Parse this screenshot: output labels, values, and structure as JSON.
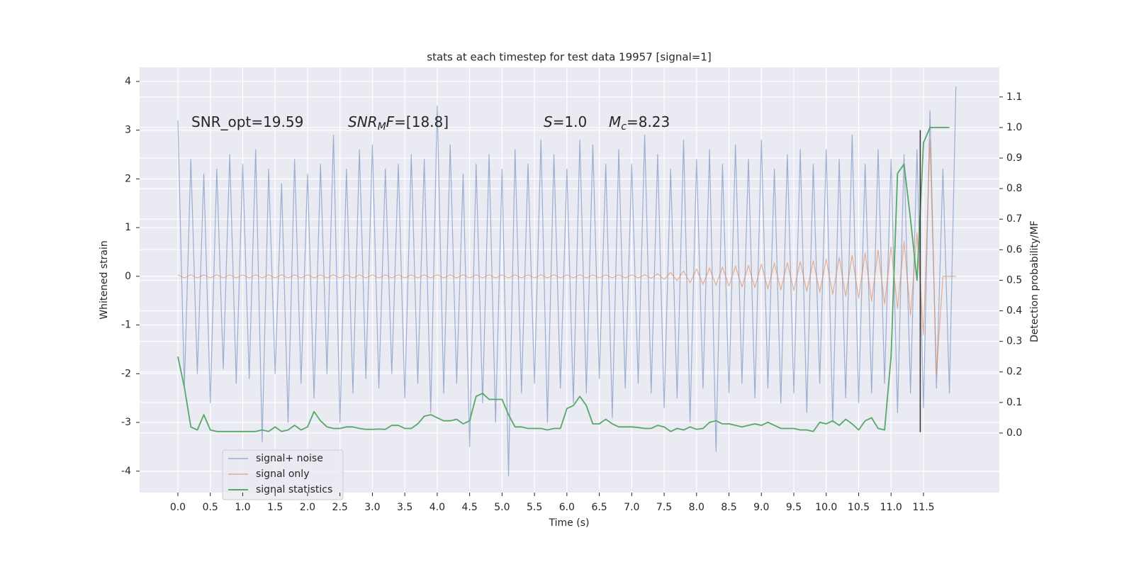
{
  "chart_data": {
    "type": "line",
    "title": "stats at each timestep for test data 19957 [signal=1]",
    "xlabel": "Time (s)",
    "ylabel": "Whitened strain",
    "y2label": "Detection probability/MF",
    "annotations": [
      [
        {
          "text": "SNR_opt=19.59"
        }
      ],
      [
        {
          "text": "SNR",
          "italic": true
        },
        {
          "text": "M",
          "italic": true,
          "sub": true
        },
        {
          "text": "F",
          "italic": true
        },
        {
          "text": "=[18.8]"
        }
      ],
      [
        {
          "text": "S",
          "italic": true
        },
        {
          "text": "=1.0"
        }
      ],
      [
        {
          "text": "M",
          "italic": true
        },
        {
          "text": "c",
          "italic": true,
          "sub": true
        },
        {
          "text": "=8.23"
        }
      ]
    ],
    "x": [
      0,
      0.1,
      0.2,
      0.3,
      0.4,
      0.5,
      0.6,
      0.7,
      0.8,
      0.9,
      1,
      1.1,
      1.2,
      1.3,
      1.4,
      1.5,
      1.6,
      1.7,
      1.8,
      1.9,
      2,
      2.1,
      2.2,
      2.3,
      2.4,
      2.5,
      2.6,
      2.7,
      2.8,
      2.9,
      3,
      3.1,
      3.2,
      3.3,
      3.4,
      3.5,
      3.6,
      3.7,
      3.8,
      3.9,
      4,
      4.1,
      4.2,
      4.3,
      4.4,
      4.5,
      4.6,
      4.7,
      4.8,
      4.9,
      5,
      5.1,
      5.2,
      5.3,
      5.4,
      5.5,
      5.6,
      5.7,
      5.8,
      5.9,
      6,
      6.1,
      6.2,
      6.3,
      6.4,
      6.5,
      6.6,
      6.7,
      6.8,
      6.9,
      7,
      7.1,
      7.2,
      7.3,
      7.4,
      7.5,
      7.6,
      7.7,
      7.8,
      7.9,
      8,
      8.1,
      8.2,
      8.3,
      8.4,
      8.5,
      8.6,
      8.7,
      8.8,
      8.9,
      9,
      9.1,
      9.2,
      9.3,
      9.4,
      9.5,
      9.6,
      9.7,
      9.8,
      9.9,
      10,
      10.1,
      10.2,
      10.3,
      10.4,
      10.5,
      10.6,
      10.7,
      10.8,
      10.9,
      11,
      11.1,
      11.2,
      11.3,
      11.4,
      11.5,
      11.6,
      11.7,
      11.8,
      11.9,
      12
    ],
    "series": [
      {
        "name": "signal+ noise",
        "color": "#4c72b0",
        "values": [
          3.2,
          -2.3,
          2.4,
          -2.0,
          2.1,
          -2.6,
          2.2,
          -1.9,
          2.5,
          -2.2,
          2.3,
          -2.1,
          2.6,
          -3.4,
          2.2,
          -2.0,
          1.9,
          -3.0,
          2.4,
          -2.2,
          2.1,
          -2.5,
          2.3,
          -2.0,
          2.9,
          -3.0,
          2.2,
          -2.4,
          2.6,
          -2.1,
          2.7,
          -2.3,
          2.2,
          -2.0,
          2.3,
          -2.5,
          2.5,
          -2.2,
          2.4,
          -2.8,
          3.5,
          -2.4,
          2.7,
          -2.2,
          2.1,
          -3.5,
          2.3,
          -2.6,
          2.5,
          -3.0,
          2.2,
          -4.1,
          2.6,
          -2.4,
          2.3,
          -2.2,
          2.8,
          -3.0,
          2.5,
          -2.3,
          2.2,
          -2.6,
          2.8,
          -2.4,
          2.7,
          -2.1,
          2.3,
          -2.9,
          2.6,
          -2.3,
          2.3,
          -2.2,
          2.9,
          -2.4,
          2.5,
          -2.7,
          2.2,
          -2.5,
          2.8,
          -3.0,
          2.4,
          -2.3,
          2.6,
          -3.6,
          2.3,
          -2.4,
          2.7,
          -2.2,
          2.4,
          -2.5,
          2.8,
          -2.3,
          2.2,
          -2.6,
          2.5,
          -2.4,
          2.6,
          -2.8,
          2.3,
          -2.2,
          2.6,
          -3.0,
          2.4,
          -2.5,
          2.9,
          -2.6,
          2.3,
          -2.4,
          2.6,
          -2.2,
          2.4,
          -2.8,
          2.5,
          -2.4,
          2.6,
          -2.7,
          3.4,
          -2.3,
          2.2,
          -2.4,
          3.9
        ]
      },
      {
        "name": "signal only",
        "color": "#dd8452",
        "values": [
          0.03,
          -0.03,
          0.03,
          -0.03,
          0.03,
          -0.03,
          0.03,
          -0.03,
          0.03,
          -0.03,
          0.03,
          -0.03,
          0.03,
          -0.03,
          0.03,
          -0.03,
          0.03,
          -0.03,
          0.03,
          -0.03,
          0.03,
          -0.03,
          0.03,
          -0.03,
          0.03,
          -0.03,
          0.03,
          -0.03,
          0.03,
          -0.03,
          0.03,
          -0.03,
          0.03,
          -0.03,
          0.03,
          -0.03,
          0.03,
          -0.03,
          0.03,
          -0.03,
          0.03,
          -0.03,
          0.03,
          -0.03,
          0.03,
          -0.03,
          0.03,
          -0.03,
          0.03,
          -0.03,
          0.03,
          -0.03,
          0.03,
          -0.03,
          0.03,
          -0.03,
          0.03,
          -0.03,
          0.03,
          -0.03,
          0.03,
          -0.03,
          0.03,
          -0.03,
          0.03,
          -0.03,
          0.03,
          -0.03,
          0.03,
          -0.03,
          0.03,
          -0.03,
          0.03,
          -0.04,
          0.05,
          -0.06,
          0.08,
          -0.09,
          0.11,
          -0.13,
          0.15,
          -0.16,
          0.17,
          -0.18,
          0.19,
          -0.2,
          0.21,
          -0.22,
          0.22,
          -0.23,
          0.25,
          -0.26,
          0.27,
          -0.28,
          0.28,
          -0.29,
          0.3,
          -0.31,
          0.32,
          -0.33,
          0.35,
          -0.37,
          0.39,
          -0.41,
          0.43,
          -0.45,
          0.48,
          -0.51,
          0.54,
          -0.57,
          0.6,
          -0.66,
          0.72,
          -0.8,
          0.9,
          -1.2,
          2.8,
          -2.0,
          0,
          0,
          0
        ]
      },
      {
        "name": "signal statistics",
        "color": "#55a868",
        "axis": "y2",
        "values": [
          0.25,
          0.15,
          0.02,
          0.01,
          0.06,
          0.01,
          0.005,
          0.005,
          0.005,
          0.005,
          0.005,
          0.005,
          0.005,
          0.01,
          0.005,
          0.02,
          0.005,
          0.01,
          0.025,
          0.01,
          0.02,
          0.07,
          0.04,
          0.02,
          0.015,
          0.015,
          0.02,
          0.02,
          0.015,
          0.012,
          0.012,
          0.013,
          0.012,
          0.025,
          0.025,
          0.015,
          0.015,
          0.03,
          0.055,
          0.06,
          0.05,
          0.04,
          0.04,
          0.045,
          0.03,
          0.04,
          0.12,
          0.13,
          0.11,
          0.11,
          0.11,
          0.06,
          0.02,
          0.02,
          0.015,
          0.015,
          0.015,
          0.01,
          0.015,
          0.015,
          0.08,
          0.09,
          0.12,
          0.09,
          0.03,
          0.03,
          0.045,
          0.03,
          0.02,
          0.02,
          0.02,
          0.018,
          0.015,
          0.015,
          0.025,
          0.02,
          0.005,
          0.015,
          0.01,
          0.02,
          0.012,
          0.015,
          0.035,
          0.04,
          0.03,
          0.03,
          0.025,
          0.02,
          0.025,
          0.03,
          0.025,
          0.035,
          0.025,
          0.015,
          0.015,
          0.015,
          0.01,
          0.01,
          0.005,
          0.035,
          0.03,
          0.04,
          0.025,
          0.045,
          0.03,
          0.01,
          0.04,
          0.05,
          0.015,
          0.01,
          0.25,
          0.85,
          0.88,
          0.7,
          0.5,
          0.95,
          1.0,
          1.0,
          1.0,
          1.0,
          null
        ]
      }
    ],
    "vline": {
      "x": 11.45,
      "ymin": -3.2,
      "ymax": 3.0,
      "color": "#333333"
    },
    "xlim": [
      -0.59,
      12.67
    ],
    "ylim": [
      -4.44,
      4.29
    ],
    "y2lim": [
      -0.195,
      1.197
    ],
    "xticks": [
      {
        "value": 0,
        "label": "0.0"
      },
      0.5,
      {
        "value": 1,
        "label": "1.0"
      },
      1.5,
      {
        "value": 2,
        "label": "2.0"
      },
      2.5,
      {
        "value": 3,
        "label": "3.0"
      },
      3.5,
      {
        "value": 4,
        "label": "4.0"
      },
      4.5,
      {
        "value": 5,
        "label": "5.0"
      },
      5.5,
      {
        "value": 6,
        "label": "6.0"
      },
      6.5,
      {
        "value": 7,
        "label": "7.0"
      },
      7.5,
      {
        "value": 8,
        "label": "8.0"
      },
      8.5,
      {
        "value": 9,
        "label": "9.0"
      },
      9.5,
      {
        "value": 10,
        "label": "10.0"
      },
      10.5,
      {
        "value": 11,
        "label": "11.0"
      },
      11.5
    ],
    "yticks": [
      -4,
      -3,
      -2,
      -1,
      0,
      1,
      2,
      3,
      4
    ],
    "y2ticks": [
      {
        "value": 0,
        "label": "0.0"
      },
      0.1,
      0.2,
      0.3,
      0.4,
      0.5,
      0.6,
      0.7,
      0.8,
      0.9,
      {
        "value": 1,
        "label": "1.0"
      },
      1.1
    ],
    "grid": true,
    "legend": "lower left"
  }
}
